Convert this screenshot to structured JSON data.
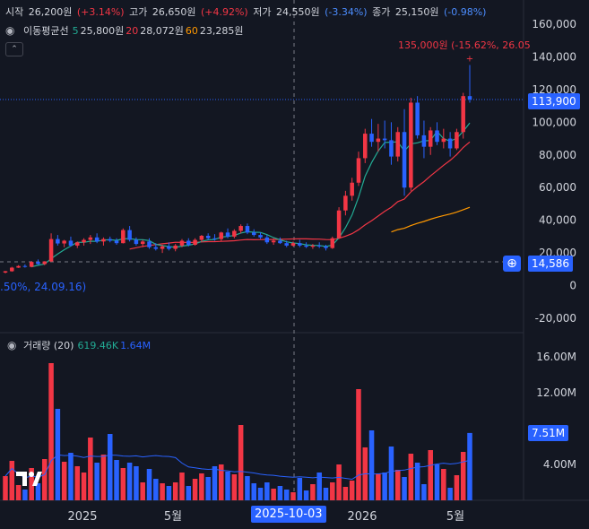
{
  "header": {
    "open_label": "시작",
    "open_value": "26,200원",
    "open_change": "(+3.14%)",
    "high_label": "고가",
    "high_value": "26,650원",
    "high_change": "(+4.92%)",
    "low_label": "저가",
    "low_value": "24,550원",
    "low_change": "(-3.34%)",
    "close_label": "종가",
    "close_value": "25,150원",
    "close_change": "(-0.98%)"
  },
  "ma_legend": {
    "name": "이동평균선",
    "p1": "5",
    "v1": "25,800원",
    "p2": "20",
    "v2": "28,072원",
    "p3": "60",
    "v3": "23,285원"
  },
  "volume_legend": {
    "name": "거래량 (20)",
    "v1": "619.46K",
    "v2": "1.64M"
  },
  "annotations": {
    "high_marker": "135,000원 (-15.62%, 26.05",
    "low_marker": ".50%, 24.09.16)"
  },
  "price_axis": {
    "ticks": [
      "160,000",
      "140,000",
      "120,000",
      "100,000",
      "80,000",
      "60,000",
      "40,000",
      "20,000",
      "0",
      "-20,000"
    ],
    "current_price": "113,900",
    "crosshair_price": "14,586"
  },
  "volume_axis": {
    "ticks": [
      "16.00M",
      "12.00M",
      "4.00M"
    ],
    "current_volume": "7.51M"
  },
  "time_axis": {
    "labels": [
      "2025",
      "5월",
      "2026",
      "5월"
    ],
    "crosshair_date": "2025-10-03"
  },
  "colors": {
    "up": "#f23645",
    "down": "#2962ff",
    "bg": "#131722",
    "ma5": "#22ab94",
    "ma20": "#f23645",
    "ma60": "#ff9800",
    "vol_ma": "#2962ff"
  },
  "chart_data": {
    "type": "candlestick",
    "price_range": [
      -30000,
      170000
    ],
    "volume_range": [
      0,
      17000000
    ],
    "candles": [
      [
        8000,
        9000,
        7500,
        8800
      ],
      [
        8800,
        11500,
        8500,
        11000
      ],
      [
        11000,
        12500,
        10800,
        12000
      ],
      [
        12000,
        13000,
        11000,
        11500
      ],
      [
        11500,
        15000,
        11200,
        14500
      ],
      [
        14500,
        16000,
        12800,
        13200
      ],
      [
        13200,
        15000,
        12500,
        14800
      ],
      [
        14800,
        32000,
        14500,
        28500
      ],
      [
        28500,
        31000,
        24500,
        25800
      ],
      [
        25800,
        28000,
        23500,
        27500
      ],
      [
        27500,
        30000,
        24000,
        24500
      ],
      [
        24500,
        27000,
        23000,
        26500
      ],
      [
        26500,
        29000,
        24500,
        28000
      ],
      [
        28000,
        31000,
        25500,
        29500
      ],
      [
        29500,
        32000,
        26000,
        27000
      ],
      [
        27000,
        29500,
        24500,
        28500
      ],
      [
        28500,
        30000,
        26500,
        27500
      ],
      [
        27500,
        29000,
        25000,
        26000
      ],
      [
        26000,
        35000,
        25800,
        34000
      ],
      [
        34000,
        36500,
        27000,
        28000
      ],
      [
        28000,
        29500,
        24500,
        25500
      ],
      [
        25500,
        28000,
        23500,
        27000
      ],
      [
        27000,
        29000,
        22500,
        23500
      ],
      [
        23500,
        26000,
        21500,
        22500
      ],
      [
        22500,
        25000,
        20000,
        24000
      ],
      [
        24000,
        26500,
        21500,
        22500
      ],
      [
        22500,
        25500,
        21000,
        24500
      ],
      [
        24500,
        28500,
        23500,
        27500
      ],
      [
        27500,
        29000,
        24000,
        25000
      ],
      [
        25000,
        29000,
        24500,
        28000
      ],
      [
        28000,
        31000,
        26500,
        30500
      ],
      [
        30500,
        32000,
        28000,
        29000
      ],
      [
        29000,
        31500,
        27500,
        28500
      ],
      [
        28500,
        33000,
        27000,
        32500
      ],
      [
        32500,
        35000,
        29000,
        30000
      ],
      [
        30000,
        34500,
        29000,
        33500
      ],
      [
        33500,
        37500,
        32000,
        36500
      ],
      [
        36500,
        38000,
        31500,
        32500
      ],
      [
        32500,
        34500,
        30000,
        31000
      ],
      [
        31000,
        32500,
        28500,
        29500
      ],
      [
        29500,
        31000,
        25500,
        26500
      ],
      [
        26500,
        29000,
        25000,
        27500
      ],
      [
        27500,
        29500,
        25500,
        26000
      ],
      [
        26000,
        27500,
        23500,
        24500
      ],
      [
        24500,
        27000,
        24000,
        26000
      ],
      [
        26000,
        28000,
        23500,
        24500
      ],
      [
        24500,
        26500,
        23000,
        23800
      ],
      [
        23800,
        25500,
        22500,
        24500
      ],
      [
        24500,
        26500,
        23000,
        24000
      ],
      [
        24000,
        25000,
        21500,
        23000
      ],
      [
        23000,
        30000,
        22500,
        29000
      ],
      [
        29000,
        48000,
        28500,
        46000
      ],
      [
        46000,
        58000,
        43000,
        55000
      ],
      [
        55000,
        66000,
        52000,
        63000
      ],
      [
        63000,
        82000,
        61000,
        78000
      ],
      [
        78000,
        96000,
        75000,
        93000
      ],
      [
        93000,
        102000,
        85000,
        88000
      ],
      [
        88000,
        99000,
        82000,
        90000
      ],
      [
        90000,
        101000,
        84000,
        89000
      ],
      [
        89000,
        100000,
        74000,
        79000
      ],
      [
        79000,
        97000,
        76000,
        94000
      ],
      [
        94000,
        108000,
        55000,
        60000
      ],
      [
        60000,
        115000,
        58000,
        112000
      ],
      [
        112000,
        116000,
        90000,
        92000
      ],
      [
        92000,
        101000,
        78000,
        85000
      ],
      [
        85000,
        97000,
        80000,
        95000
      ],
      [
        95000,
        100000,
        86000,
        88000
      ],
      [
        88000,
        96000,
        84000,
        90000
      ],
      [
        90000,
        94000,
        79000,
        84000
      ],
      [
        84000,
        96000,
        83000,
        94000
      ],
      [
        94000,
        118000,
        90000,
        116000
      ],
      [
        116000,
        135000,
        112000,
        113900
      ]
    ],
    "volumes": [
      2.7,
      4.4,
      1.7,
      1.2,
      3.6,
      1.9,
      4.6,
      15.3,
      10.2,
      4.3,
      5.3,
      3.8,
      3.1,
      7.0,
      4.2,
      5.1,
      7.4,
      4.5,
      3.6,
      4.2,
      3.8,
      2.0,
      3.5,
      2.4,
      1.9,
      1.6,
      2.0,
      3.1,
      1.6,
      2.4,
      3.0,
      2.6,
      3.8,
      4.0,
      3.2,
      2.9,
      8.4,
      2.7,
      1.9,
      1.4,
      2.0,
      1.3,
      1.6,
      1.2,
      0.9,
      2.5,
      1.1,
      1.8,
      3.1,
      1.4,
      2.0,
      4.0,
      1.5,
      2.2,
      12.4,
      5.9,
      7.8,
      3.0,
      3.1,
      6.0,
      3.4,
      2.6,
      5.2,
      4.2,
      1.8,
      5.6,
      4.0,
      3.5,
      1.4,
      2.8,
      5.4,
      7.51
    ]
  }
}
